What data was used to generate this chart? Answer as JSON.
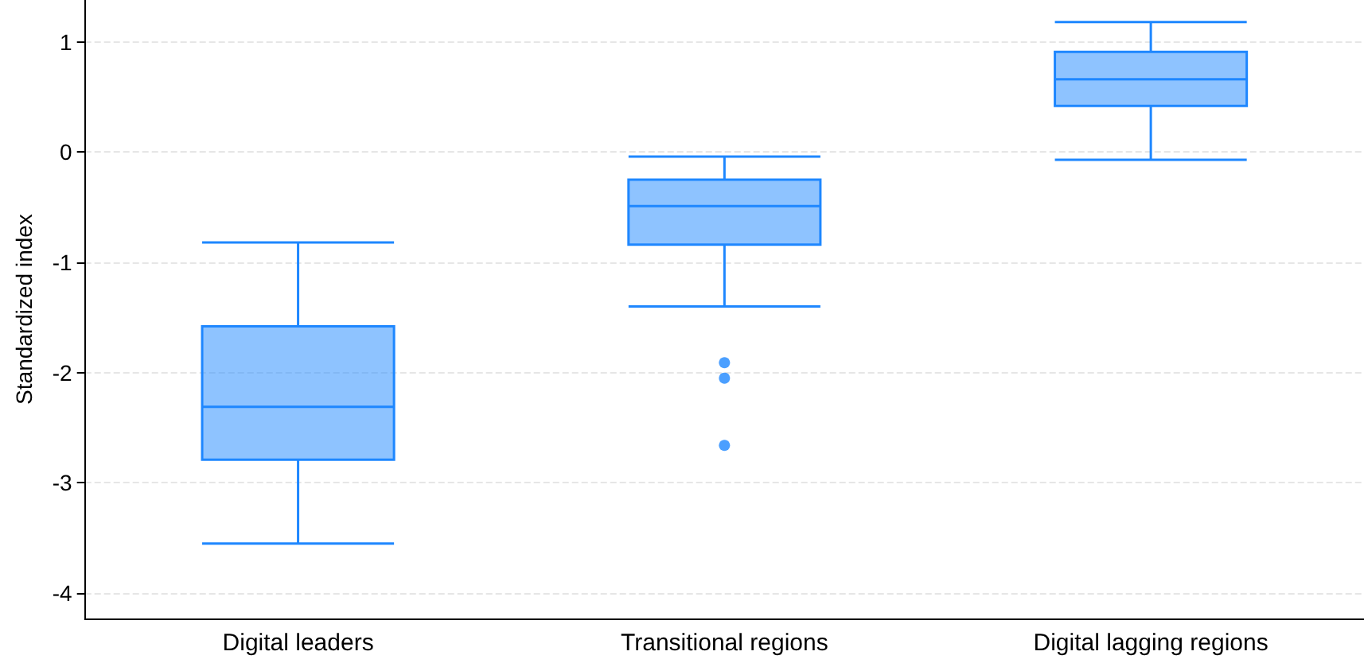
{
  "chart_data": {
    "type": "box",
    "ylabel": "Standardized index",
    "categories": [
      "Digital leaders",
      "Transitional regions",
      "Digital lagging regions"
    ],
    "boxes": [
      {
        "low": -3.55,
        "q1": -2.79,
        "median": -2.31,
        "q3": -1.58,
        "high": -0.82
      },
      {
        "low": -1.4,
        "q1": -0.84,
        "median": -0.49,
        "q3": -0.25,
        "high": -0.04,
        "outliers": [
          -1.91,
          -2.05,
          -2.66
        ]
      },
      {
        "low": -0.07,
        "q1": 0.42,
        "median": 0.66,
        "q3": 0.91,
        "high": 1.18
      }
    ],
    "color": "#1e87ff",
    "ylim": [
      -4.23,
      1.38
    ],
    "yticks": [
      -4,
      -3,
      -2,
      -1,
      0,
      1
    ],
    "grid": "y"
  }
}
